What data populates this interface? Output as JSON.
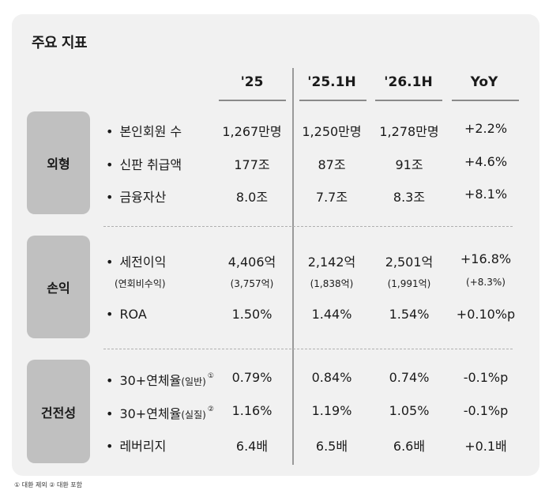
{
  "title": "주요 지표",
  "columns": [
    "'25",
    "'25.1H",
    "'26.1H",
    "YoY"
  ],
  "sections": [
    {
      "name": "외형",
      "rows": [
        {
          "label": "본인회원 수",
          "values": [
            "1,267만명",
            "1,250만명",
            "1,278만명",
            "+2.2%"
          ]
        },
        {
          "label": "신판 취급액",
          "values": [
            "177조",
            "87조",
            "91조",
            "+4.6%"
          ]
        },
        {
          "label": "금융자산",
          "values": [
            "8.0조",
            "7.7조",
            "8.3조",
            "+8.1%"
          ]
        }
      ]
    },
    {
      "name": "손익",
      "rows": [
        {
          "label": "세전이익",
          "values": [
            "4,406억",
            "2,142억",
            "2,501억",
            "+16.8%"
          ]
        },
        {
          "label": "(연회비수익)",
          "values": [
            "(3,757억)",
            "(1,838억)",
            "(1,991억)",
            "(+8.3%)"
          ]
        },
        {
          "label": "ROA",
          "values": [
            "1.50%",
            "1.44%",
            "1.54%",
            "+0.10%p"
          ]
        }
      ]
    },
    {
      "name": "건전성",
      "rows": [
        {
          "label": "30+연체율",
          "qualifier": "(일반)",
          "note": "①",
          "values": [
            "0.79%",
            "0.84%",
            "0.74%",
            "-0.1%p"
          ]
        },
        {
          "label": "30+연체율",
          "qualifier": "(실질)",
          "note": "②",
          "values": [
            "1.16%",
            "1.19%",
            "1.05%",
            "-0.1%p"
          ]
        },
        {
          "label": "레버리지",
          "values": [
            "6.4배",
            "6.5배",
            "6.6배",
            "+0.1배"
          ]
        }
      ]
    }
  ],
  "bullet": "•",
  "footnote": "① 대환 제외  ② 대환 포함"
}
